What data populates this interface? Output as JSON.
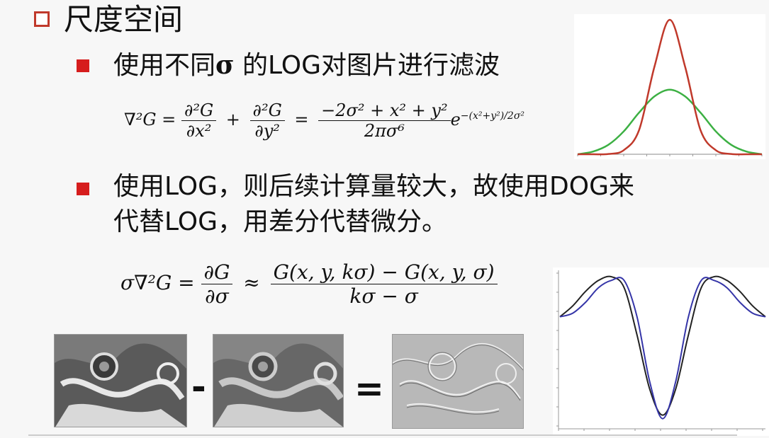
{
  "slide": {
    "title": "尺度空间",
    "bullet1_pre": "使用不同",
    "bullet1_sigma": "σ",
    "bullet1_post": " 的LOG对图片进行滤波",
    "bullet2_line1": "使用LOG，则后续计算量较大，故使用DOG来",
    "bullet2_line2": "代替LOG，用差分代替微分。"
  },
  "formula1": {
    "lhs": "∇²G =",
    "t1_num": "∂²G",
    "t1_den": "∂x²",
    "plus": "+",
    "t2_num": "∂²G",
    "t2_den": "∂y²",
    "eq": "=",
    "t3_num": "−2σ² + x² + y²",
    "t3_den": "2πσ⁶",
    "exp_base": "e",
    "exp_power": "−(x²+y²)/2σ²"
  },
  "formula2": {
    "lhs": "σ∇²G =",
    "t1_num": "∂G",
    "t1_den": "∂σ",
    "approx": "≈",
    "t2_num": "G(x, y, kσ) − G(x, y, σ)",
    "t2_den": "kσ − σ"
  },
  "operators": {
    "minus": "-",
    "equals": "="
  },
  "colors": {
    "bullet": "#d61d1d",
    "title_box": "#c0392b",
    "gauss_narrow": "#c0392b",
    "gauss_wide": "#3cb043",
    "dog_black": "#222222",
    "dog_blue": "#3535a8"
  },
  "chart_data": [
    {
      "type": "line",
      "series": [
        {
          "values": "narrow gaussian"
        },
        {
          "values": "wide gaussian"
        }
      ],
      "x": [
        -3,
        -2.5,
        -2,
        -1.5,
        -1,
        -0.5,
        0,
        0.5,
        1,
        1.5,
        2,
        2.5,
        3
      ],
      "narrow": [
        0.0,
        0.0,
        0.002,
        0.03,
        0.18,
        0.65,
        1.0,
        0.65,
        0.18,
        0.03,
        0.002,
        0.0,
        0.0
      ],
      "wide": [
        0.0,
        0.02,
        0.07,
        0.17,
        0.31,
        0.43,
        0.48,
        0.43,
        0.31,
        0.17,
        0.07,
        0.02,
        0.0
      ]
    },
    {
      "type": "line",
      "x": [
        -4,
        -3.5,
        -3,
        -2.5,
        -2,
        -1.5,
        -1,
        -0.5,
        0,
        0.5,
        1,
        1.5,
        2,
        2.5,
        3,
        3.5,
        4
      ],
      "black": [
        0.0,
        0.03,
        0.07,
        0.1,
        0.11,
        0.08,
        -0.05,
        -0.2,
        -0.27,
        -0.2,
        -0.05,
        0.08,
        0.11,
        0.1,
        0.07,
        0.03,
        0.0
      ],
      "blue": [
        0.0,
        0.01,
        0.04,
        0.08,
        0.1,
        0.1,
        0.0,
        -0.18,
        -0.28,
        -0.18,
        0.0,
        0.1,
        0.1,
        0.08,
        0.04,
        0.01,
        0.0
      ],
      "ylim": [
        -0.3,
        0.12
      ],
      "xlim": [
        -4,
        4
      ]
    }
  ]
}
